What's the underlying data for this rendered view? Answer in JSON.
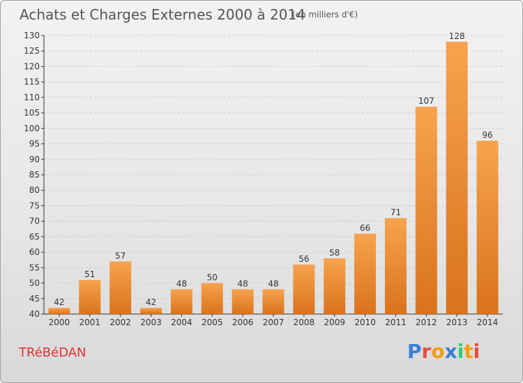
{
  "header": {
    "title": "Achats et Charges Externes 2000 à 2014",
    "subtitle": "(en milliers d'€)"
  },
  "footer": {
    "commune": "TRéBéDAN",
    "logo_text": "Proxiti",
    "logo_colors": [
      "#3a7fd5",
      "#e84c3d",
      "#f39c12",
      "#3a7fd5",
      "#2ecc71",
      "#f39c12",
      "#e84c3d"
    ]
  },
  "colors": {
    "bar_light": "#f7a34e",
    "bar_dark": "#d9731c",
    "grid": "#cccccc",
    "axis": "#333333",
    "text": "#333333"
  },
  "chart_data": {
    "type": "bar",
    "categories": [
      "2000",
      "2001",
      "2002",
      "2003",
      "2004",
      "2005",
      "2006",
      "2007",
      "2008",
      "2009",
      "2010",
      "2011",
      "2012",
      "2013",
      "2014"
    ],
    "values": [
      42,
      51,
      57,
      42,
      48,
      50,
      48,
      48,
      56,
      58,
      66,
      71,
      107,
      128,
      96
    ],
    "ylim": [
      40,
      130
    ],
    "yticks": [
      40,
      45,
      50,
      55,
      60,
      65,
      70,
      75,
      80,
      85,
      90,
      95,
      100,
      105,
      110,
      115,
      120,
      125,
      130
    ],
    "grid": true,
    "data_labels": true
  }
}
